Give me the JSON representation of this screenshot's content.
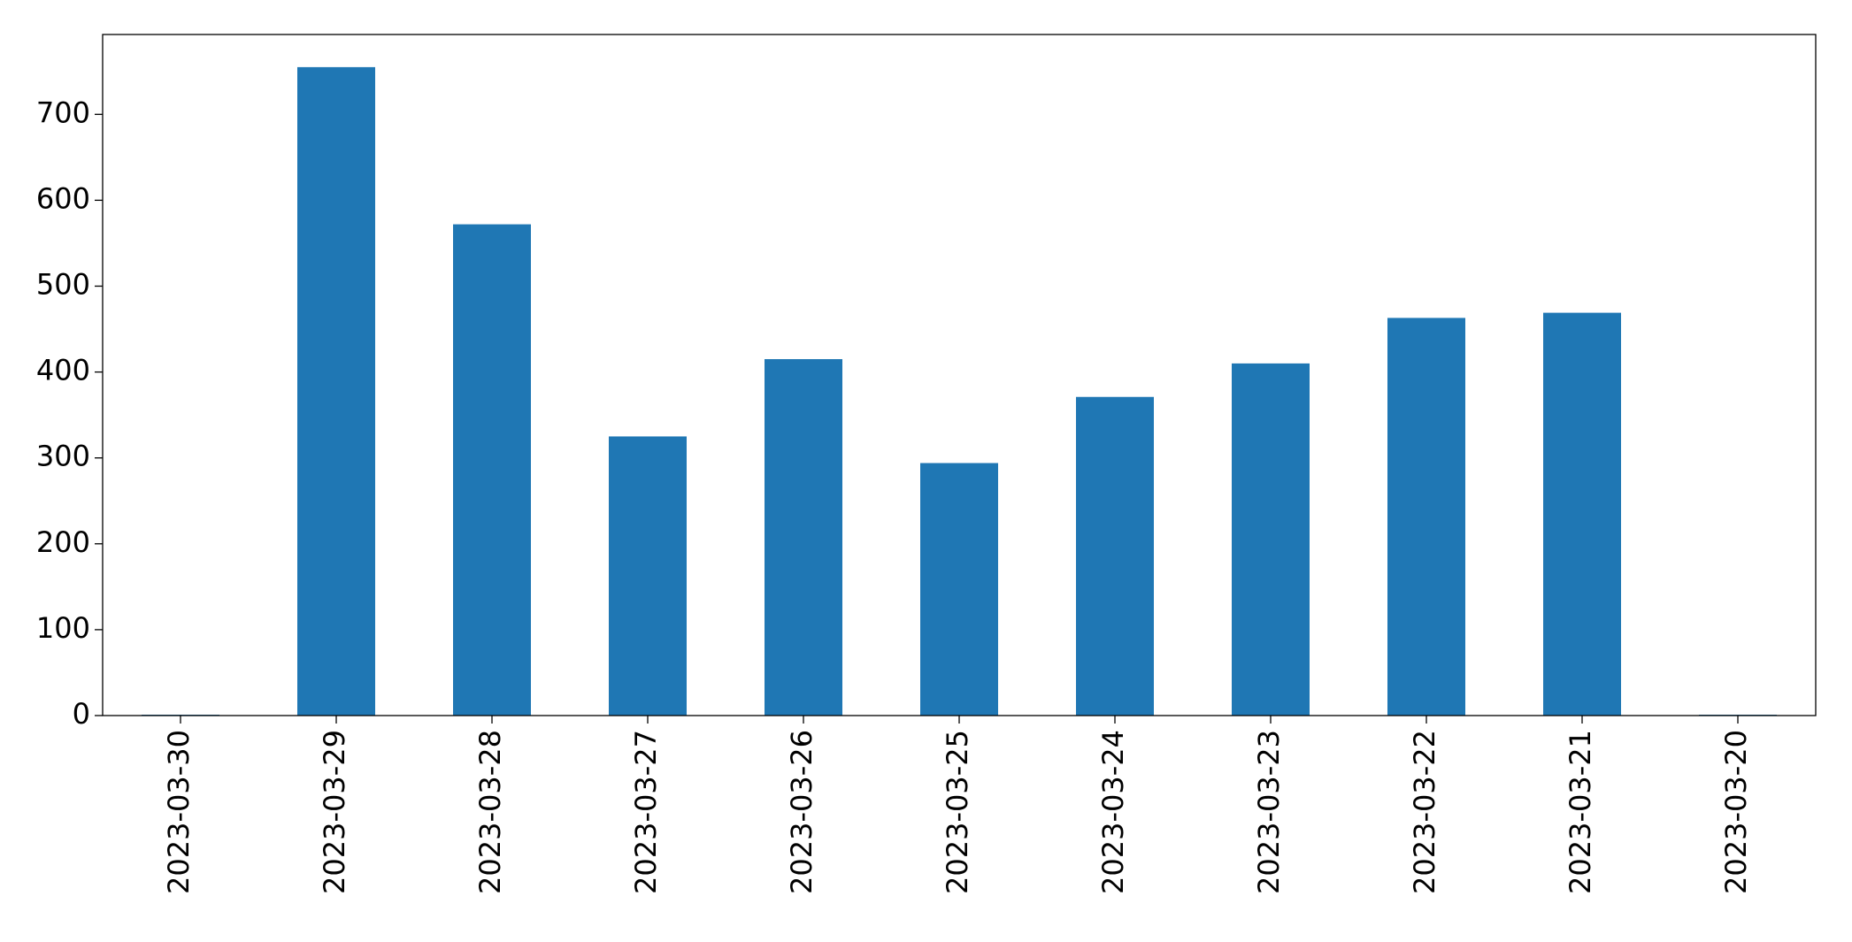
{
  "chart_data": {
    "type": "bar",
    "categories": [
      "2023-03-30",
      "2023-03-29",
      "2023-03-28",
      "2023-03-27",
      "2023-03-26",
      "2023-03-25",
      "2023-03-24",
      "2023-03-23",
      "2023-03-22",
      "2023-03-21",
      "2023-03-20"
    ],
    "values": [
      1,
      755,
      572,
      325,
      415,
      294,
      371,
      410,
      463,
      469,
      1
    ],
    "color": "#1f77b4",
    "ylim": [
      0,
      793
    ],
    "yticks": [
      0,
      100,
      200,
      300,
      400,
      500,
      600,
      700
    ],
    "grid": false
  }
}
